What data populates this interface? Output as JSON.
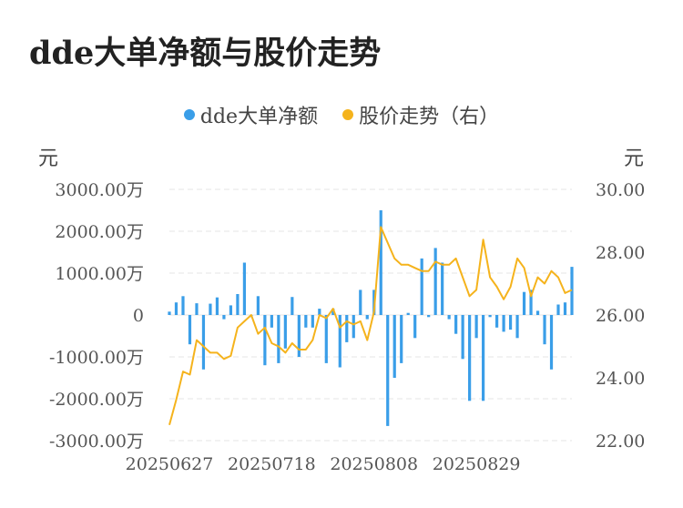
{
  "chart_data": {
    "type": "bar+line",
    "title": "dde大单净额与股价走势",
    "legend": [
      "dde大单净额",
      "股价走势（右）"
    ],
    "left_unit": "元",
    "right_unit": "元",
    "left_ticks": [
      "3000.00万",
      "2000.00万",
      "1000.00万",
      "0",
      "-1000.00万",
      "-2000.00万",
      "-3000.00万"
    ],
    "right_ticks": [
      "30.00",
      "28.00",
      "26.00",
      "24.00",
      "22.00"
    ],
    "x_tick_labels": [
      "20250627",
      "20250718",
      "20250808",
      "20250829"
    ],
    "x_tick_indices": [
      0,
      15,
      30,
      45
    ],
    "ylim_left": [
      -3000,
      3000
    ],
    "ylim_right": [
      22,
      30
    ],
    "colors": {
      "bar": "#3a9ee8",
      "line": "#f5b31c",
      "grid": "#e6e6e6"
    },
    "series": [
      {
        "name": "dde大单净额",
        "values": [
          80,
          300,
          450,
          -700,
          280,
          -1300,
          270,
          420,
          -100,
          230,
          500,
          1250,
          -50,
          450,
          -1200,
          -300,
          -1150,
          -800,
          430,
          -1000,
          -300,
          -300,
          150,
          -1150,
          150,
          -1250,
          -650,
          -550,
          600,
          -100,
          600,
          2500,
          -2650,
          -1500,
          -1150,
          50,
          -550,
          1350,
          -50,
          1600,
          1250,
          -100,
          -450,
          -1050,
          -2050,
          -550,
          -2050,
          -50,
          -300,
          -400,
          -350,
          -550,
          550,
          600,
          100,
          -700,
          -1300,
          250,
          300,
          1150
        ]
      },
      {
        "name": "股价走势（右）",
        "values": [
          22.5,
          23.3,
          24.2,
          24.1,
          25.2,
          25.0,
          24.8,
          24.8,
          24.6,
          24.7,
          25.6,
          25.8,
          26.0,
          25.4,
          25.6,
          25.1,
          25.0,
          24.8,
          25.1,
          24.9,
          24.9,
          25.2,
          26.0,
          25.9,
          26.2,
          25.6,
          25.8,
          25.7,
          25.8,
          25.2,
          26.1,
          28.8,
          28.3,
          27.8,
          27.6,
          27.6,
          27.5,
          27.4,
          27.4,
          27.7,
          27.6,
          27.6,
          27.8,
          27.2,
          26.6,
          26.8,
          28.4,
          27.2,
          26.9,
          26.5,
          26.9,
          27.8,
          27.5,
          26.6,
          27.2,
          27.0,
          27.4,
          27.2,
          26.7,
          26.8
        ]
      }
    ]
  }
}
